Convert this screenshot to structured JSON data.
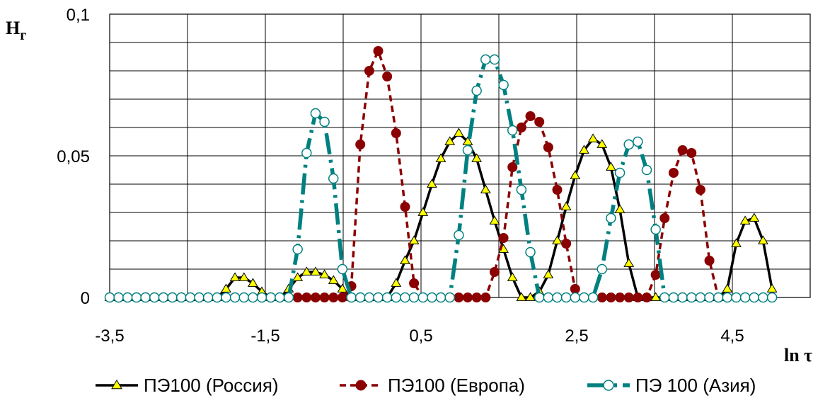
{
  "chart_data": {
    "type": "line",
    "ylabel": "H",
    "ylabel_sub": "г",
    "xlabel": "ln τ",
    "xlim": [
      -3.5,
      5.5
    ],
    "ylim": [
      0,
      0.1
    ],
    "xticks": [
      -3.5,
      -2.5,
      -1.5,
      -0.5,
      0.5,
      1.5,
      2.5,
      3.5,
      4.5,
      5.5
    ],
    "xtick_labels": [
      "-3,5",
      "",
      "-1,5",
      "",
      "0,5",
      "",
      "2,5",
      "",
      "4,5",
      ""
    ],
    "yticks": [
      0,
      0.05,
      0.1
    ],
    "ytick_labels": [
      "0",
      "0,05",
      "0,1"
    ],
    "grid": true,
    "legend_position": "bottom",
    "x": [
      -3.5,
      -3.385,
      -3.27,
      -3.155,
      -3.04,
      -2.925,
      -2.81,
      -2.695,
      -2.58,
      -2.465,
      -2.35,
      -2.235,
      -2.12,
      -2.005,
      -1.89,
      -1.775,
      -1.66,
      -1.545,
      -1.43,
      -1.315,
      -1.2,
      -1.085,
      -0.97,
      -0.855,
      -0.74,
      -0.625,
      -0.51,
      -0.395,
      -0.28,
      -0.165,
      -0.05,
      0.065,
      0.18,
      0.295,
      0.41,
      0.525,
      0.64,
      0.755,
      0.87,
      0.985,
      1.1,
      1.215,
      1.33,
      1.445,
      1.56,
      1.675,
      1.79,
      1.905,
      2.02,
      2.135,
      2.25,
      2.365,
      2.48,
      2.595,
      2.71,
      2.825,
      2.94,
      3.055,
      3.17,
      3.285,
      3.4,
      3.515,
      3.63,
      3.745,
      3.86,
      3.975,
      4.09,
      4.205,
      4.32,
      4.435,
      4.55,
      4.665,
      4.78,
      4.895,
      5.01
    ],
    "series": [
      {
        "name": "ПЭ100 (Россия)",
        "color": "#000000",
        "dash": "solid",
        "marker": "triangle",
        "marker_fill": "#ffff00",
        "values": [
          0,
          0,
          0,
          0,
          0,
          0,
          0,
          0,
          0,
          0,
          0,
          0,
          0,
          0.003,
          0.007,
          0.007,
          0.005,
          0.002,
          0,
          0,
          0.003,
          0.007,
          0.009,
          0.009,
          0.008,
          0.006,
          0.003,
          0,
          0,
          0,
          0,
          0,
          0.005,
          0.013,
          0.02,
          0.03,
          0.04,
          0.049,
          0.055,
          0.058,
          0.055,
          0.049,
          0.038,
          0.027,
          0.017,
          0.007,
          0,
          0,
          0.002,
          0.008,
          0.02,
          0.032,
          0.043,
          0.052,
          0.056,
          0.054,
          0.046,
          0.031,
          0.012,
          0,
          0,
          0,
          0,
          0,
          0,
          0,
          0,
          0,
          0,
          0.003,
          0.019,
          0.027,
          0.028,
          0.02,
          0.003
        ]
      },
      {
        "name": "ПЭ100 (Европа)",
        "color": "#8b0000",
        "dash": "dashed",
        "marker": "circle",
        "marker_fill": "#8b0000",
        "values": [
          0,
          0,
          0,
          0,
          0,
          0,
          0,
          0,
          0,
          0,
          0,
          0,
          0,
          0,
          0,
          0,
          0,
          0,
          0,
          0,
          0,
          0,
          0,
          0,
          0,
          0,
          0,
          0.004,
          0.054,
          0.08,
          0.087,
          0.078,
          0.058,
          0.032,
          0.005,
          0,
          0,
          0,
          0,
          0,
          0,
          0,
          0,
          0.009,
          0.021,
          0.046,
          0.06,
          0.064,
          0.062,
          0.053,
          0.038,
          0.019,
          0.003,
          0,
          0,
          0,
          0,
          0,
          0,
          0,
          0,
          0.008,
          0.028,
          0.044,
          0.052,
          0.051,
          0.038,
          0.013,
          0,
          0,
          0,
          0,
          0,
          0,
          0
        ]
      },
      {
        "name": "ПЭ 100 (Азия)",
        "color": "#008080",
        "dash": "dashdot",
        "marker": "circle",
        "marker_fill": "#ffffff",
        "values": [
          0,
          0,
          0,
          0,
          0,
          0,
          0,
          0,
          0,
          0,
          0,
          0,
          0,
          0,
          0,
          0,
          0,
          0,
          0,
          0,
          0,
          0.017,
          0.051,
          0.065,
          0.062,
          0.042,
          0.01,
          0,
          0,
          0,
          0,
          0,
          0,
          0,
          0,
          0,
          0,
          0,
          0,
          0.022,
          0.052,
          0.073,
          0.084,
          0.084,
          0.075,
          0.059,
          0.038,
          0.016,
          0,
          0,
          0,
          0,
          0,
          0,
          0,
          0.01,
          0.028,
          0.044,
          0.054,
          0.055,
          0.045,
          0.024,
          0,
          0,
          0,
          0,
          0,
          0,
          0,
          0,
          0,
          0,
          0,
          0,
          0
        ]
      }
    ]
  }
}
